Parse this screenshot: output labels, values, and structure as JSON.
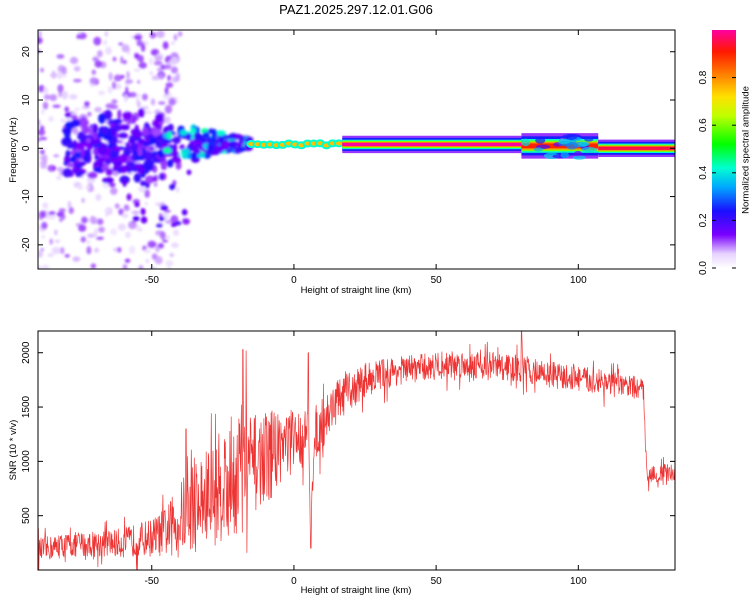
{
  "title": "PAZ1.2025.297.12.01.G06",
  "colors": {
    "snr_line": "#ee3333",
    "axis": "#000000",
    "background": "#ffffff"
  },
  "chart_data": [
    {
      "type": "heatmap",
      "xlabel": "Height of straight line (km)",
      "ylabel": "Frequency (Hz)",
      "xlim": [
        -90,
        134
      ],
      "ylim": [
        -25,
        24.5
      ],
      "xticks": [
        -50,
        0,
        50,
        100
      ],
      "xtick_labels": [
        "-50",
        "0",
        "50",
        "100"
      ],
      "yticks": [
        20,
        10,
        0,
        -10,
        -20
      ],
      "ytick_labels": [
        "20",
        "10",
        "0",
        "-10",
        "-20"
      ],
      "colorbar": {
        "label": "Normalized spectral amplitude",
        "range": [
          0,
          1
        ],
        "ticks": [
          0.0,
          0.2,
          0.4,
          0.6,
          0.8
        ],
        "tick_labels": [
          "0.0",
          "0.2",
          "0.4",
          "0.6",
          "0.8"
        ],
        "colormap": "rainbow (white, violet, blue, cyan, green, yellow, orange, red, magenta)"
      },
      "features": [
        {
          "description": "scattered low-amplitude spectral noise",
          "x_range": [
            -90,
            -40
          ],
          "freq_range": [
            -25,
            24
          ]
        },
        {
          "description": "strong blobs near carrier",
          "x_range": [
            -80,
            -45
          ],
          "freq_range": [
            -8,
            8
          ],
          "amplitude": 0.25
        },
        {
          "description": "converging tone",
          "x_range": [
            -45,
            -15
          ],
          "freq_range": [
            -4,
            6
          ],
          "amplitude": 0.45
        },
        {
          "description": "single tone ~1 Hz",
          "x_range": [
            -15,
            17
          ],
          "freq": 1.0,
          "amplitude": 0.8
        },
        {
          "description": "single tone ~1 Hz",
          "x_range": [
            17,
            80
          ],
          "freq": 0.8,
          "amplitude": 1.0
        },
        {
          "description": "tone with broader sidebands",
          "x_range": [
            80,
            107
          ],
          "freq": 0.5,
          "amplitude": 0.9
        },
        {
          "description": "tone after drop",
          "x_range": [
            107,
            134
          ],
          "freq": 0.0,
          "amplitude": 0.95
        }
      ]
    },
    {
      "type": "line",
      "xlabel": "Height of straight line (km)",
      "ylabel": "SNR (10 * v/v)",
      "xlim": [
        -90,
        134
      ],
      "ylim": [
        0,
        2200
      ],
      "xticks": [
        -50,
        0,
        50,
        100
      ],
      "xtick_labels": [
        "-50",
        "0",
        "50",
        "100"
      ],
      "yticks": [
        500,
        1000,
        1500,
        2000
      ],
      "ytick_labels": [
        "500",
        "1000",
        "1500",
        "2000"
      ],
      "series": [
        {
          "name": "SNR",
          "x": [
            -90,
            -80,
            -70,
            -60,
            -50,
            -45,
            -40,
            -35,
            -30,
            -25,
            -20,
            -18,
            -15,
            -10,
            -5,
            0,
            5,
            6,
            7,
            10,
            15,
            20,
            25,
            30,
            40,
            50,
            60,
            70,
            80,
            90,
            100,
            110,
            120,
            123,
            124,
            128,
            134
          ],
          "values": [
            180,
            230,
            240,
            250,
            300,
            350,
            480,
            600,
            650,
            800,
            900,
            1050,
            950,
            1050,
            1150,
            1200,
            1250,
            300,
            1250,
            1350,
            1550,
            1650,
            1750,
            1800,
            1850,
            1880,
            1900,
            1880,
            1850,
            1800,
            1760,
            1720,
            1680,
            1650,
            900,
            880,
            900
          ],
          "spikes": [
            {
              "x": -38,
              "y": 1300
            },
            {
              "x": -18,
              "y": 2030
            },
            {
              "x": 5,
              "y": 2000
            },
            {
              "x": 6,
              "y": 200
            },
            {
              "x": 80,
              "y": 2200
            }
          ],
          "noise_amplitude": [
            140,
            140,
            150,
            170,
            220,
            280,
            420,
            550,
            600,
            650,
            750,
            800,
            600,
            500,
            450,
            350,
            300,
            200,
            300,
            300,
            250,
            220,
            200,
            180,
            160,
            160,
            160,
            160,
            160,
            150,
            150,
            140,
            130,
            130,
            110,
            100,
            100
          ]
        }
      ]
    }
  ]
}
